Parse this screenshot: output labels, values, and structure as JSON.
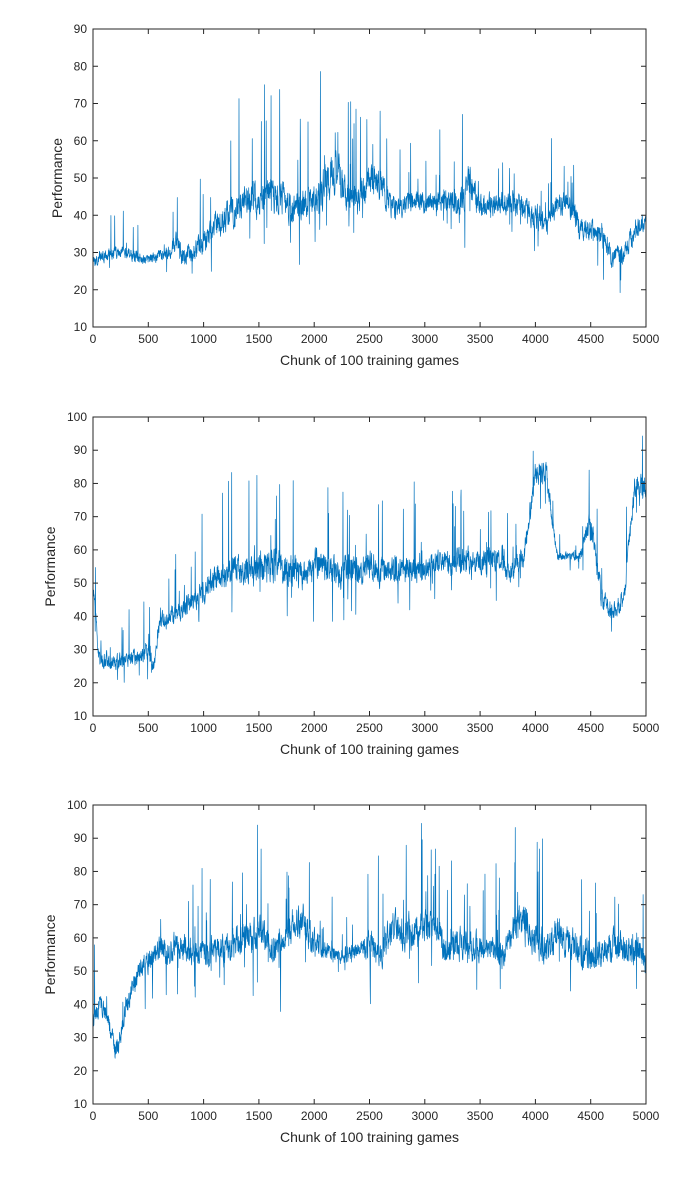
{
  "colors": {
    "line": "#0072bd",
    "axes": "#262626",
    "background": "#ffffff"
  },
  "chart_data": [
    {
      "type": "line",
      "title": "",
      "xlabel": "Chunk of 100 training games",
      "ylabel": "Performance",
      "xlim": [
        0,
        5000
      ],
      "ylim": [
        10,
        90
      ],
      "xticks": [
        0,
        500,
        1000,
        1500,
        2000,
        2500,
        3000,
        3500,
        4000,
        4500,
        5000
      ],
      "yticks": [
        10,
        20,
        30,
        40,
        50,
        60,
        70,
        80,
        90
      ],
      "grid": false,
      "series": [
        {
          "x": [
            0,
            100,
            200,
            300,
            400,
            500,
            600,
            700,
            750,
            800,
            900,
            1000,
            1100,
            1200,
            1300,
            1400,
            1500,
            1600,
            1700,
            1800,
            1900,
            2000,
            2100,
            2200,
            2300,
            2400,
            2500,
            2600,
            2700,
            2800,
            2900,
            3000,
            3100,
            3200,
            3300,
            3400,
            3500,
            3600,
            3700,
            3800,
            3900,
            4000,
            4100,
            4200,
            4300,
            4400,
            4500,
            4600,
            4700,
            4800,
            4900,
            5000
          ],
          "y": [
            28,
            29,
            30,
            30,
            29,
            28,
            29,
            30,
            34,
            29,
            30,
            33,
            37,
            40,
            42,
            44,
            45,
            46,
            45,
            41,
            43,
            45,
            48,
            52,
            45,
            44,
            50,
            48,
            43,
            42,
            44,
            44,
            43,
            44,
            42,
            49,
            42,
            44,
            43,
            43,
            42,
            40,
            37,
            43,
            43,
            37,
            36,
            35,
            28,
            30,
            36,
            38
          ],
          "spread": [
            4,
            4,
            4,
            4,
            4,
            4,
            4,
            4,
            7,
            6,
            7,
            8,
            9,
            10,
            11,
            11,
            12,
            12,
            12,
            11,
            10,
            11,
            14,
            13,
            10,
            10,
            12,
            11,
            8,
            7,
            7,
            7,
            7,
            7,
            8,
            12,
            8,
            8,
            7,
            8,
            8,
            9,
            9,
            8,
            8,
            9,
            8,
            8,
            7,
            7,
            7,
            6
          ]
        }
      ]
    },
    {
      "type": "line",
      "title": "",
      "xlabel": "Chunk of 100 training games",
      "ylabel": "Performance",
      "xlim": [
        0,
        5000
      ],
      "ylim": [
        10,
        100
      ],
      "xticks": [
        0,
        500,
        1000,
        1500,
        2000,
        2500,
        3000,
        3500,
        4000,
        4500,
        5000
      ],
      "yticks": [
        10,
        20,
        30,
        40,
        50,
        60,
        70,
        80,
        90,
        100
      ],
      "grid": false,
      "series": [
        {
          "x": [
            0,
            50,
            100,
            200,
            300,
            400,
            500,
            550,
            600,
            700,
            800,
            900,
            1000,
            1100,
            1200,
            1300,
            1400,
            1500,
            1600,
            1700,
            1800,
            1900,
            2000,
            2100,
            2200,
            2300,
            2400,
            2500,
            2600,
            2700,
            2800,
            2900,
            3000,
            3100,
            3200,
            3300,
            3400,
            3500,
            3600,
            3700,
            3750,
            3800,
            3900,
            4000,
            4100,
            4200,
            4300,
            4400,
            4500,
            4600,
            4700,
            4800,
            4900,
            5000
          ],
          "y": [
            50,
            28,
            27,
            26,
            27,
            28,
            30,
            25,
            38,
            40,
            42,
            45,
            48,
            51,
            53,
            54,
            53,
            55,
            55,
            56,
            54,
            53,
            55,
            55,
            53,
            54,
            53,
            56,
            53,
            54,
            55,
            54,
            54,
            56,
            56,
            57,
            57,
            56,
            57,
            58,
            52,
            55,
            58,
            84,
            82,
            58,
            58,
            58,
            68,
            45,
            42,
            45,
            80,
            78
          ],
          "spread": [
            6,
            6,
            6,
            6,
            6,
            7,
            7,
            6,
            6,
            7,
            7,
            8,
            9,
            10,
            11,
            12,
            12,
            12,
            12,
            12,
            12,
            12,
            12,
            12,
            11,
            11,
            11,
            11,
            10,
            10,
            10,
            10,
            9,
            9,
            9,
            9,
            9,
            9,
            9,
            10,
            8,
            9,
            9,
            9,
            9,
            3,
            3,
            4,
            12,
            8,
            7,
            7,
            8,
            9
          ]
        }
      ]
    },
    {
      "type": "line",
      "title": "",
      "xlabel": "Chunk of 100 training games",
      "ylabel": "Performance",
      "xlim": [
        0,
        5000
      ],
      "ylim": [
        10,
        100
      ],
      "xticks": [
        0,
        500,
        1000,
        1500,
        2000,
        2500,
        3000,
        3500,
        4000,
        4500,
        5000
      ],
      "yticks": [
        10,
        20,
        30,
        40,
        50,
        60,
        70,
        80,
        90,
        100
      ],
      "grid": false,
      "series": [
        {
          "x": [
            0,
            50,
            100,
            150,
            200,
            250,
            300,
            400,
            500,
            600,
            700,
            800,
            900,
            1000,
            1100,
            1200,
            1300,
            1400,
            1500,
            1600,
            1700,
            1800,
            1900,
            2000,
            2100,
            2200,
            2300,
            2400,
            2500,
            2600,
            2700,
            2800,
            2900,
            3000,
            3100,
            3200,
            3300,
            3400,
            3500,
            3600,
            3700,
            3800,
            3900,
            4000,
            4100,
            4200,
            4300,
            4400,
            4500,
            4600,
            4700,
            4800,
            4900,
            5000
          ],
          "y": [
            35,
            40,
            38,
            33,
            25,
            32,
            40,
            48,
            53,
            56,
            57,
            57,
            56,
            56,
            56,
            57,
            60,
            60,
            62,
            58,
            59,
            64,
            65,
            58,
            56,
            55,
            55,
            56,
            58,
            54,
            63,
            62,
            63,
            63,
            64,
            55,
            58,
            57,
            57,
            57,
            54,
            62,
            65,
            60,
            56,
            62,
            58,
            56,
            54,
            56,
            58,
            56,
            57,
            53
          ],
          "spread": [
            8,
            8,
            8,
            8,
            8,
            8,
            8,
            9,
            9,
            10,
            10,
            10,
            10,
            10,
            11,
            12,
            13,
            13,
            13,
            12,
            12,
            13,
            13,
            11,
            7,
            6,
            6,
            6,
            12,
            10,
            13,
            13,
            13,
            13,
            13,
            11,
            12,
            11,
            9,
            9,
            10,
            13,
            13,
            13,
            13,
            13,
            12,
            12,
            11,
            11,
            12,
            12,
            13,
            9
          ]
        }
      ]
    }
  ]
}
